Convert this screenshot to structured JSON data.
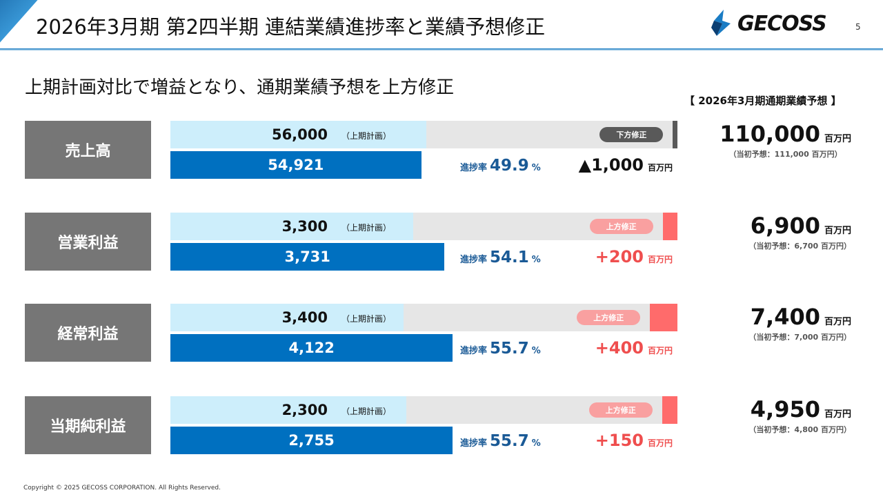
{
  "header": {
    "title": "2026年3月期 第2四半期 連結業績進捗率と業績予想修正",
    "logo_text": "GECOSS",
    "page_number": "5"
  },
  "subtitle": "上期計画対比で増益となり、通期業績予想を上方修正",
  "forecast_header": "【 2026年3月期通期業績予想 】",
  "labels": {
    "plan_note": "（上期計画）",
    "progress": "進捗率",
    "percent": "%",
    "unit": "百万円"
  },
  "colors": {
    "up": "#ff6b6b",
    "down": "#595959",
    "up_badge": "#f9a0a0",
    "down_badge": "#595959"
  },
  "rows": [
    {
      "label": "売上高",
      "plan": "56,000",
      "plan_num": 56000,
      "actual": "54,921",
      "actual_num": 54921,
      "badge": "下方修正",
      "dir": "down",
      "progress": "49.9",
      "diff": "▲1,000",
      "forecast": "110,000",
      "forecast_num": 110000,
      "original": "（当初予想：111,000 百万円）",
      "original_num": 111000
    },
    {
      "label": "営業利益",
      "plan": "3,300",
      "plan_num": 3300,
      "actual": "3,731",
      "actual_num": 3731,
      "badge": "上方修正",
      "dir": "up",
      "progress": "54.1",
      "diff": "+200",
      "forecast": "6,900",
      "forecast_num": 6900,
      "original": "（当初予想：6,700 百万円）",
      "original_num": 6700
    },
    {
      "label": "経常利益",
      "plan": "3,400",
      "plan_num": 3400,
      "actual": "4,122",
      "actual_num": 4122,
      "badge": "上方修正",
      "dir": "up",
      "progress": "55.7",
      "diff": "+400",
      "forecast": "7,400",
      "forecast_num": 7400,
      "original": "（当初予想：7,000 百万円）",
      "original_num": 7000
    },
    {
      "label": "当期純利益",
      "plan": "2,300",
      "plan_num": 2300,
      "actual": "2,755",
      "actual_num": 2755,
      "badge": "上方修正",
      "dir": "up",
      "progress": "55.7",
      "diff": "+150",
      "forecast": "4,950",
      "forecast_num": 4950,
      "original": "（当初予想：4,800 百万円）",
      "original_num": 4800
    }
  ],
  "footer": "Copyright © 2025 GECOSS CORPORATION. All Rights Reserved."
}
